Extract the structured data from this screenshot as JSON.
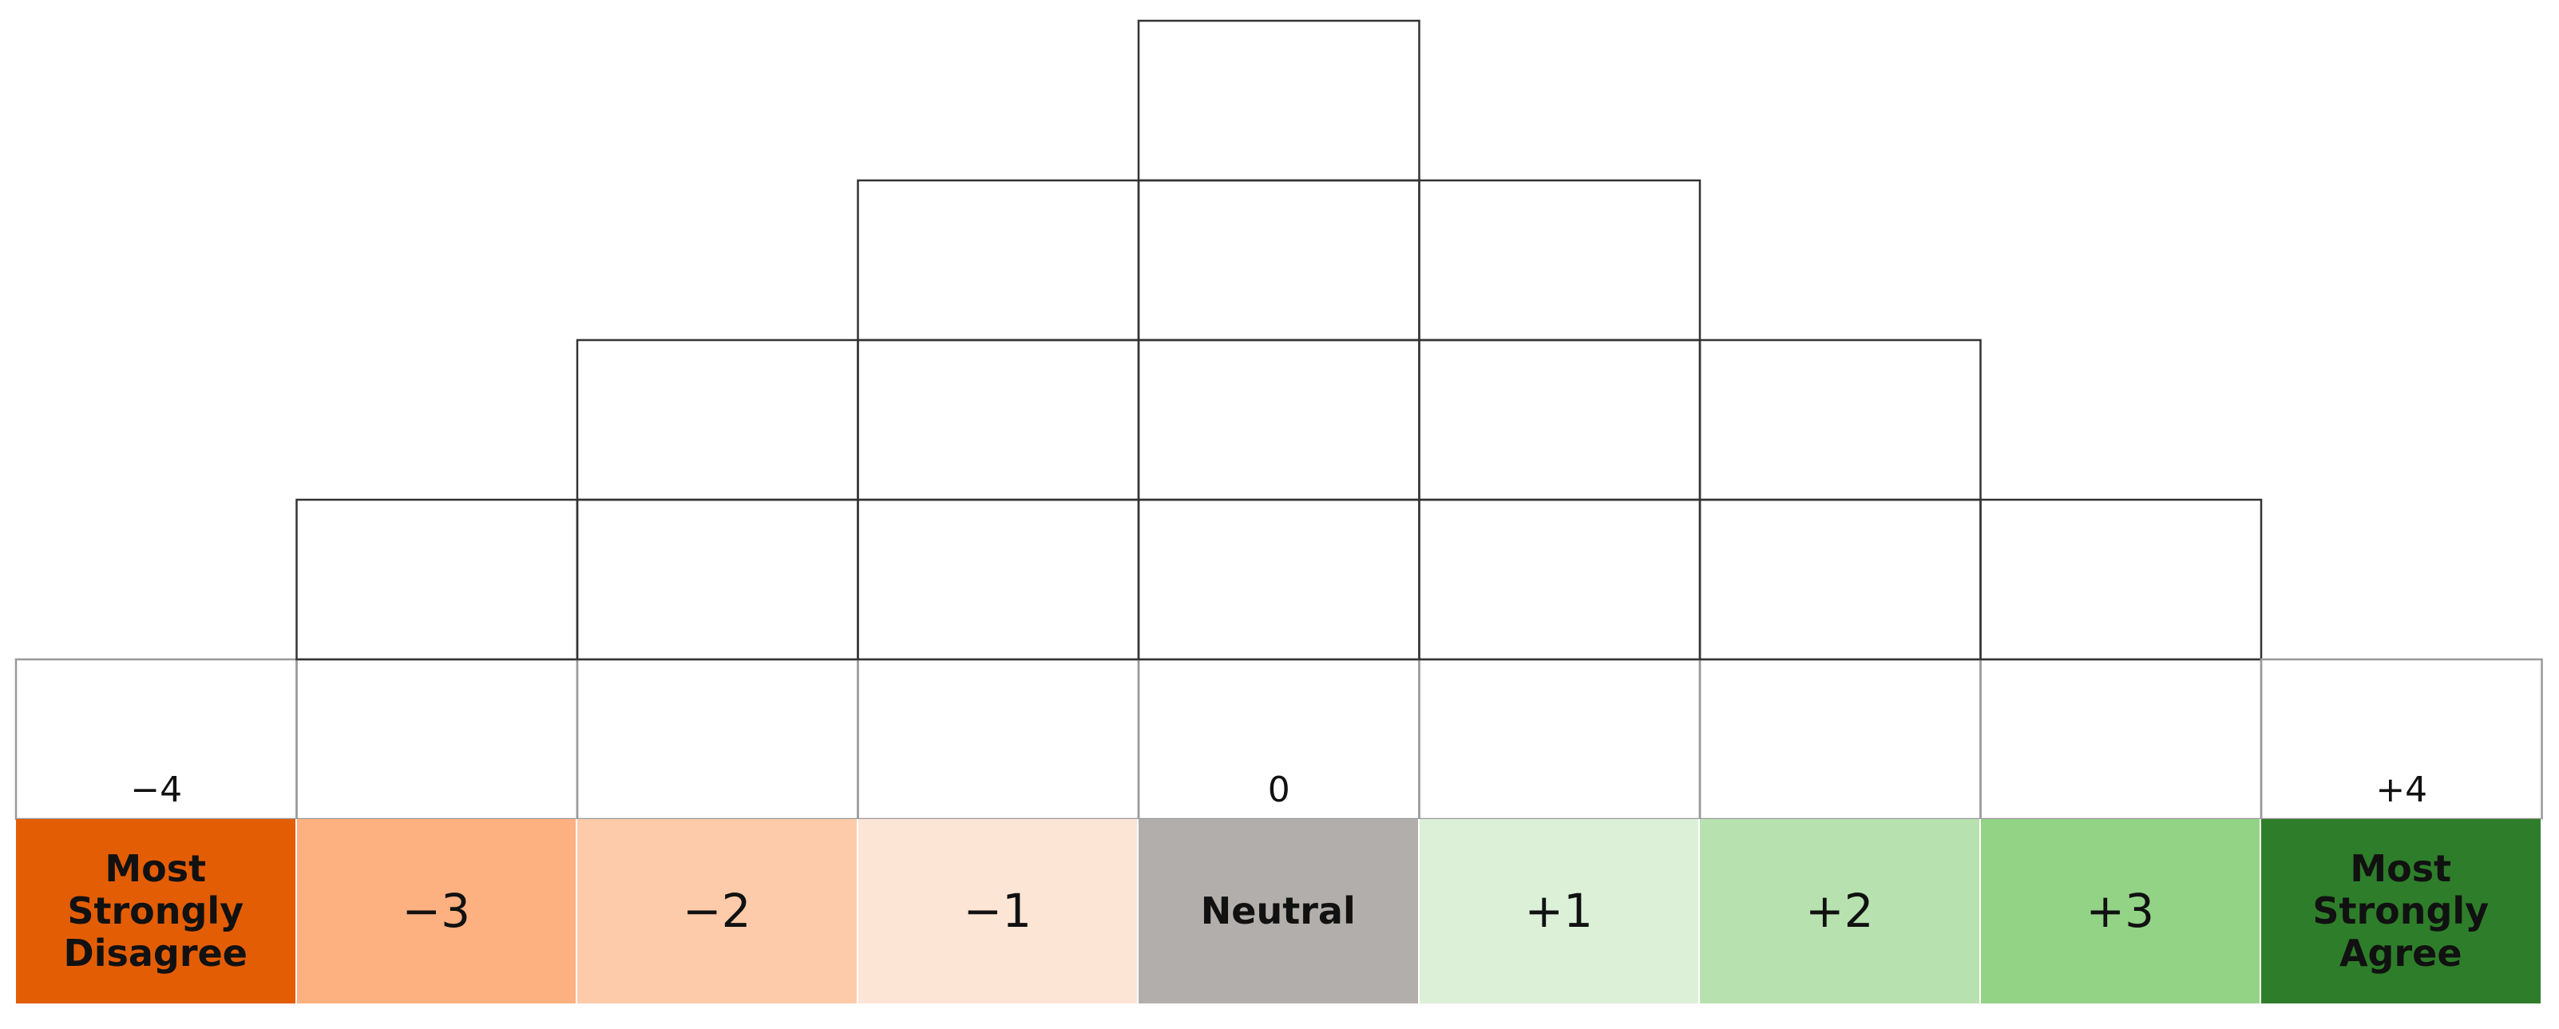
{
  "columns": [
    {
      "label": "Most Strongly Disagree",
      "marker": "−4",
      "color": "#e35d05",
      "slots": 1
    },
    {
      "label": "−3",
      "color": "#fdb080",
      "slots": 2
    },
    {
      "label": "−2",
      "color": "#fdcbaa",
      "slots": 3
    },
    {
      "label": "−1",
      "color": "#fde5d6",
      "slots": 4
    },
    {
      "label": "Neutral",
      "marker": "0",
      "color": "#b2aeab",
      "slots": 5
    },
    {
      "label": "+1",
      "color": "#dcf0d8",
      "slots": 4
    },
    {
      "label": "+2",
      "color": "#b8e1b0",
      "slots": 3
    },
    {
      "label": "+3",
      "color": "#93d386",
      "slots": 2
    },
    {
      "label": "Most Strongly Agree",
      "marker": "+4",
      "color": "#2e7d2a",
      "slots": 1
    }
  ]
}
